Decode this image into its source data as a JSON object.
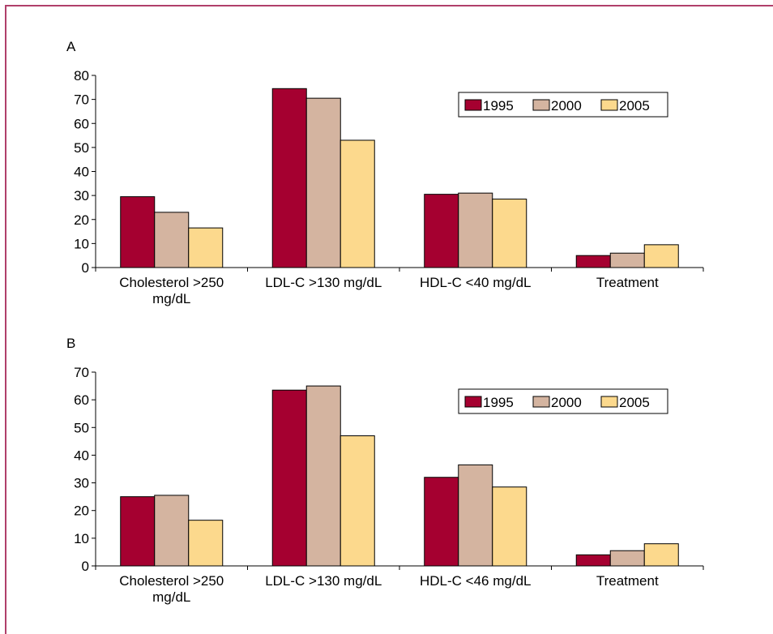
{
  "chart_data": [
    {
      "type": "bar",
      "panel_label": "A",
      "categories": [
        "Cholesterol >250 mg/dL",
        "LDL-C >130 mg/dL",
        "HDL-C <40 mg/dL",
        "Treatment"
      ],
      "category_lines": [
        [
          "Cholesterol >250",
          "mg/dL"
        ],
        [
          "LDL-C >130 mg/dL"
        ],
        [
          "HDL-C <40 mg/dL"
        ],
        [
          "Treatment"
        ]
      ],
      "series": [
        {
          "name": "1995",
          "color": "#a50030",
          "values": [
            29.5,
            74.5,
            30.5,
            5
          ]
        },
        {
          "name": "2000",
          "color": "#d4b4a0",
          "values": [
            23,
            70.5,
            31,
            6
          ]
        },
        {
          "name": "2005",
          "color": "#fcd98d",
          "values": [
            16.5,
            53,
            28.5,
            9.5
          ]
        }
      ],
      "ylim": [
        0,
        80
      ],
      "yticks": [
        0,
        10,
        20,
        30,
        40,
        50,
        60,
        70,
        80
      ],
      "xlabel": "",
      "ylabel": "",
      "legend": "top-right",
      "grid": false
    },
    {
      "type": "bar",
      "panel_label": "B",
      "categories": [
        "Cholesterol >250 mg/dL",
        "LDL-C >130 mg/dL",
        "HDL-C <46 mg/dL",
        "Treatment"
      ],
      "category_lines": [
        [
          "Cholesterol >250",
          "mg/dL"
        ],
        [
          "LDL-C >130 mg/dL"
        ],
        [
          "HDL-C <46 mg/dL"
        ],
        [
          "Treatment"
        ]
      ],
      "series": [
        {
          "name": "1995",
          "color": "#a50030",
          "values": [
            25,
            63.5,
            32,
            4
          ]
        },
        {
          "name": "2000",
          "color": "#d4b4a0",
          "values": [
            25.5,
            65,
            36.5,
            5.5
          ]
        },
        {
          "name": "2005",
          "color": "#fcd98d",
          "values": [
            16.5,
            47,
            28.5,
            8
          ]
        }
      ],
      "ylim": [
        0,
        70
      ],
      "yticks": [
        0,
        10,
        20,
        30,
        40,
        50,
        60,
        70
      ],
      "xlabel": "",
      "ylabel": "",
      "legend": "top-right",
      "grid": false
    }
  ]
}
